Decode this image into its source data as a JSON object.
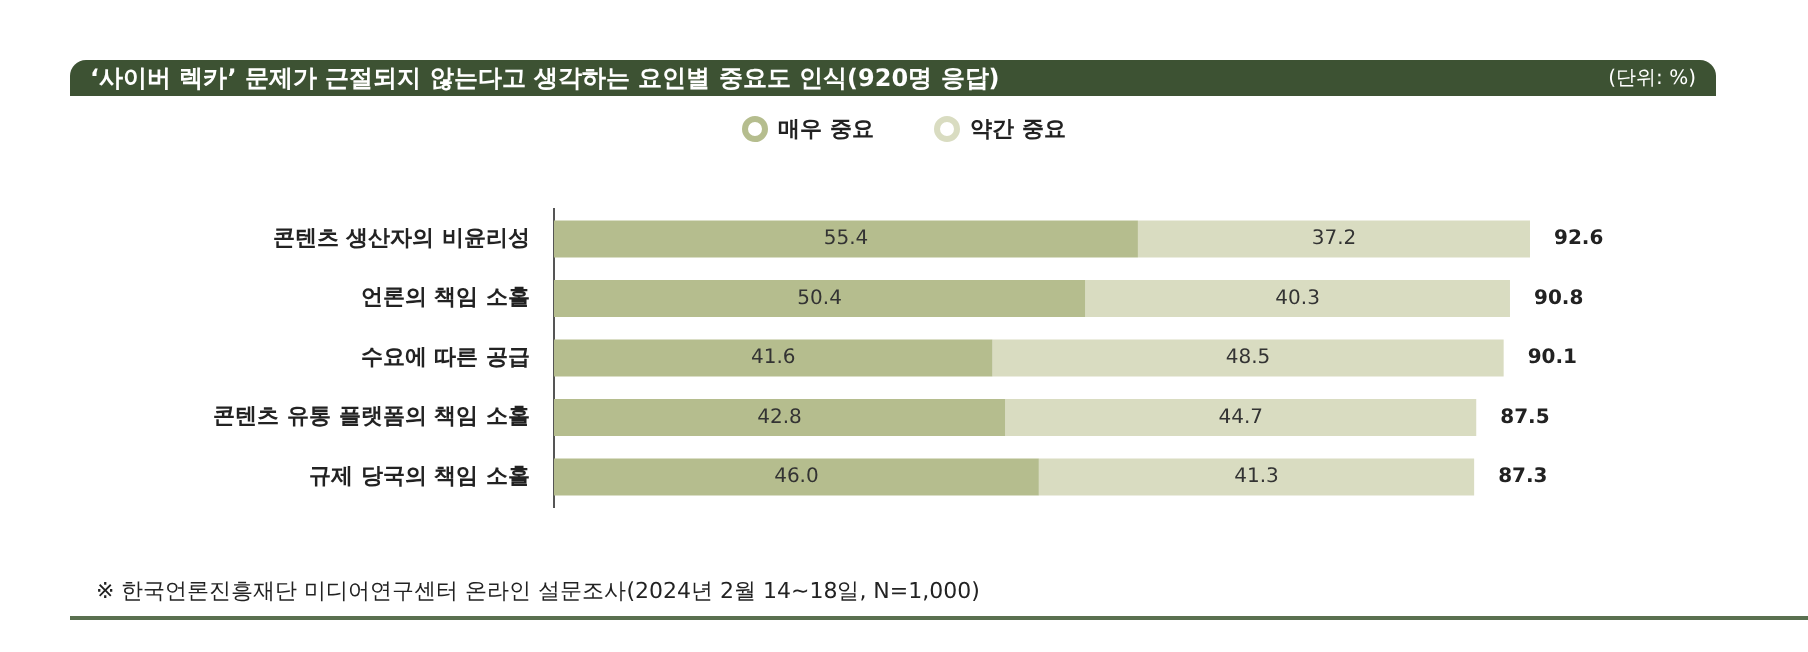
{
  "chart_data": {
    "type": "bar",
    "orientation": "horizontal",
    "stacked": true,
    "title": "‘사이버 렉카’ 문제가 근절되지 않는다고 생각하는 요인별 중요도 인식(920명 응답)",
    "subtitle": "(단위: %)",
    "categories": [
      "콘텐츠 생산자의 비윤리성",
      "언론의 책임 소홀",
      "수요에 따른 공급",
      "콘텐츠 유통 플랫폼의 책임 소홀",
      "규제 당국의 책임 소홀"
    ],
    "series": [
      {
        "name": "매우 중요",
        "color": "#b5bd8e",
        "values": [
          55.4,
          50.4,
          41.6,
          42.8,
          46.0
        ],
        "value_labels": [
          "55.4",
          "50.4",
          "41.6",
          "42.8",
          "46.0"
        ]
      },
      {
        "name": "약간 중요",
        "color": "#d9dcc1",
        "values": [
          37.2,
          40.3,
          48.5,
          44.7,
          41.3
        ],
        "value_labels": [
          "37.2",
          "40.3",
          "48.5",
          "44.7",
          "41.3"
        ]
      }
    ],
    "totals": [
      "92.6",
      "90.8",
      "90.1",
      "87.5",
      "87.3"
    ],
    "tick_labels": "y",
    "legend": "top",
    "annotations": [
      "※ 한국언론진흥재단 미디어연구센터 온라인 설문조사(2024년 2월 14~18일, N=1,000)"
    ]
  }
}
